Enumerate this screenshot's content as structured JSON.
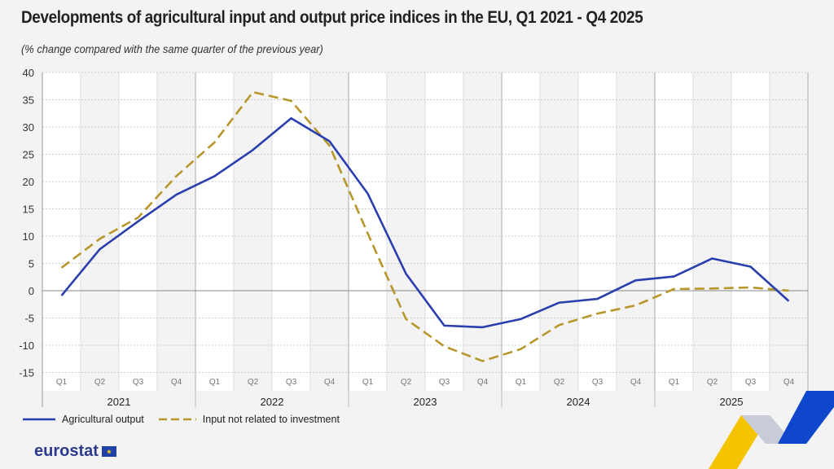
{
  "chart_data": {
    "type": "line",
    "title": "Developments of agricultural input and output price indices in the EU, Q1 2021 - Q4 2025",
    "subtitle": "(% change compared with the same quarter of the previous year)",
    "ylim": [
      -15,
      40
    ],
    "yticks": [
      40,
      35,
      30,
      25,
      20,
      15,
      10,
      5,
      0,
      -5,
      -10,
      -15
    ],
    "quarters": [
      "Q1",
      "Q2",
      "Q3",
      "Q4"
    ],
    "years": [
      "2021",
      "2022",
      "2023",
      "2024",
      "2025"
    ],
    "series": [
      {
        "name": "Agricultural output",
        "color": "#2a3fae",
        "dashed": false,
        "values": [
          -0.9,
          7.6,
          12.7,
          17.6,
          21.0,
          25.8,
          31.6,
          27.4,
          17.8,
          3.1,
          -6.4,
          -6.7,
          -5.2,
          -2.2,
          -1.5,
          1.9,
          2.6,
          5.9,
          4.4,
          -1.9
        ]
      },
      {
        "name": "Input not related to investment",
        "color": "#b8972a",
        "dashed": true,
        "values": [
          4.2,
          9.5,
          13.4,
          21.0,
          27.2,
          36.4,
          34.8,
          26.6,
          10.5,
          -5.2,
          -10.2,
          -12.9,
          -10.7,
          -6.3,
          -4.2,
          -2.7,
          0.3,
          0.4,
          0.6,
          0.0
        ]
      }
    ],
    "legend": "bottom-left"
  },
  "brand": "eurostat"
}
